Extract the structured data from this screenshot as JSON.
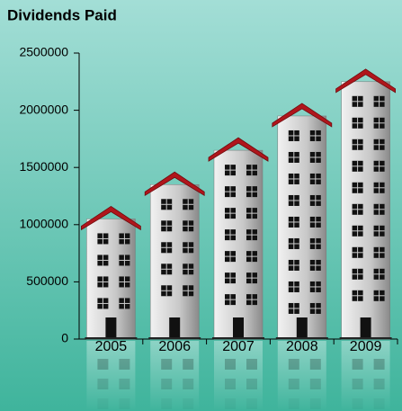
{
  "chart_data": {
    "type": "bar",
    "title": "Dividends Paid",
    "categories": [
      "2005",
      "2006",
      "2007",
      "2008",
      "2009"
    ],
    "values": [
      1050000,
      1350000,
      1650000,
      1950000,
      2250000
    ],
    "color": "#b5b5b5",
    "roof_color": "#b0161c",
    "ylim": [
      0,
      2500000
    ],
    "yticks": [
      0,
      500000,
      1000000,
      1500000,
      2000000,
      2500000
    ]
  }
}
